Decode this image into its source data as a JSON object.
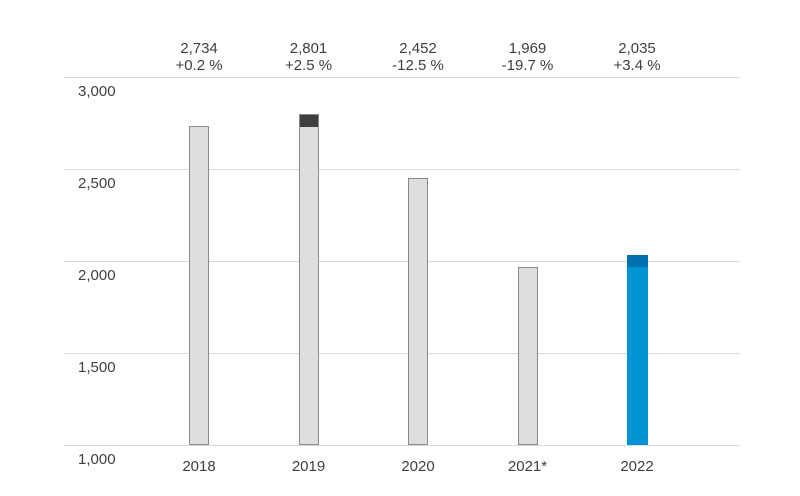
{
  "chart_data": {
    "type": "bar",
    "title": "",
    "categories": [
      "2018",
      "2019",
      "2020",
      "2021*",
      "2022"
    ],
    "values": [
      2734,
      2801,
      2452,
      1969,
      2035
    ],
    "value_labels": [
      "2,734",
      "2,801",
      "2,452",
      "1,969",
      "2,035"
    ],
    "change_labels": [
      "+0.2 %",
      "+2.5 %",
      "-12.5 %",
      "-19.7 %",
      "+3.4 %"
    ],
    "bar_colors": [
      "gray",
      "gray",
      "gray",
      "gray",
      "blue"
    ],
    "cap_from": [
      null,
      2734,
      null,
      null,
      1969
    ],
    "ylim": [
      1000,
      3000
    ],
    "yticks": [
      3000,
      2500,
      2000,
      1500,
      1000
    ],
    "ytick_labels": [
      "3,000",
      "2,500",
      "2,000",
      "1,500",
      "1,000"
    ],
    "grid": true,
    "legend": false,
    "colors": {
      "gray_fill": "#dedede",
      "gray_border": "#8a8a8a",
      "gray_cap": "#3f3f3f",
      "blue_fill": "#0095d2",
      "blue_cap": "#0071ae",
      "gridline": "#d9d9d9",
      "text": "#3f3f3f",
      "background": "#ffffff"
    }
  }
}
